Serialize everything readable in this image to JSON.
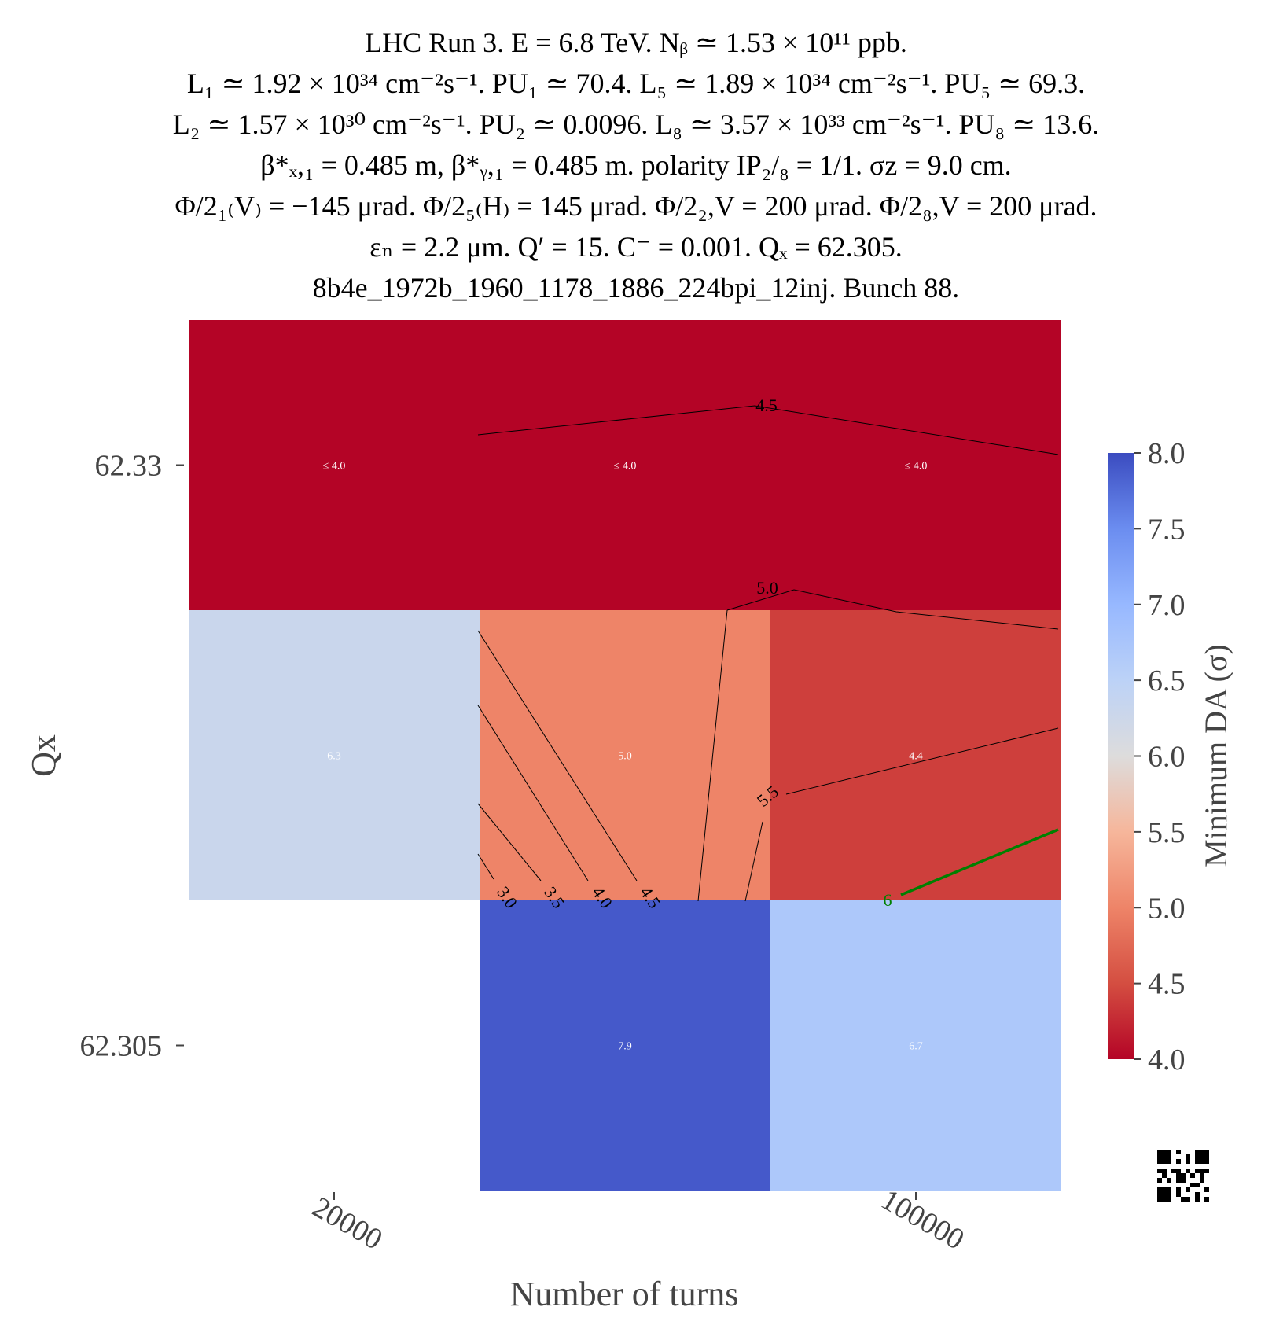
{
  "title_lines": [
    "LHC Run 3. E = 6.8 TeV. Nᵦ ≃ 1.53 × 10¹¹ ppb.",
    "L₁ ≃ 1.92 × 10³⁴ cm⁻²s⁻¹. PU₁ ≃ 70.4. L₅ ≃ 1.89 × 10³⁴ cm⁻²s⁻¹. PU₅ ≃ 69.3.",
    "L₂ ≃ 1.57 × 10³⁰ cm⁻²s⁻¹. PU₂ ≃ 0.0096. L₈ ≃ 3.57 × 10³³ cm⁻²s⁻¹. PU₈ ≃ 13.6.",
    "β*ₓ,₁ = 0.485 m, β*ᵧ,₁ = 0.485 m. polarity IP₂/₈ = 1/1. σz = 9.0 cm.",
    "Φ/2₁₍V₎ = −145 μrad. Φ/2₅₍H₎ = 145 μrad. Φ/2₂,V = 200 μrad. Φ/2₈,V = 200 μrad.",
    "εₙ = 2.2 μm. Q′ = 15. C⁻ = 0.001. Qₓ = 62.305.",
    "8b4e_1972b_1960_1178_1886_224bpi_12inj. Bunch 88."
  ],
  "chart_data": {
    "type": "heatmap",
    "xlabel": "Number of turns",
    "ylabel": "Qx",
    "x_categories": [
      "20000",
      "",
      "100000"
    ],
    "x_tick_labels": [
      "20000",
      "",
      "100000"
    ],
    "y_categories": [
      "62.33",
      "",
      "62.305"
    ],
    "y_tick_labels": [
      "62.33",
      "",
      "62.305"
    ],
    "cells": [
      {
        "row": 0,
        "col": 0,
        "value": 4.0,
        "label": "≤ 4.0"
      },
      {
        "row": 0,
        "col": 1,
        "value": 4.0,
        "label": "≤ 4.0"
      },
      {
        "row": 0,
        "col": 2,
        "value": 4.0,
        "label": "≤ 4.0"
      },
      {
        "row": 1,
        "col": 0,
        "value": 6.3,
        "label": "6.3"
      },
      {
        "row": 1,
        "col": 1,
        "value": 5.0,
        "label": "5.0"
      },
      {
        "row": 1,
        "col": 2,
        "value": 4.4,
        "label": "4.4"
      },
      {
        "row": 2,
        "col": 1,
        "value": 7.9,
        "label": "7.9"
      },
      {
        "row": 2,
        "col": 2,
        "value": 6.7,
        "label": "6.7"
      }
    ],
    "colorbar": {
      "label": "Minimum DA (σ)",
      "range": [
        4.0,
        8.0
      ],
      "ticks": [
        "4.0",
        "4.5",
        "5.0",
        "5.5",
        "6.0",
        "6.5",
        "7.0",
        "7.5",
        "8.0"
      ],
      "colormap": "coolwarm_r"
    },
    "contour_labels": [
      "4.5",
      "5.0",
      "5.5",
      "3.0",
      "3.5",
      "4.0",
      "4.5",
      "6"
    ],
    "highlight_contour_color": "#008000"
  }
}
